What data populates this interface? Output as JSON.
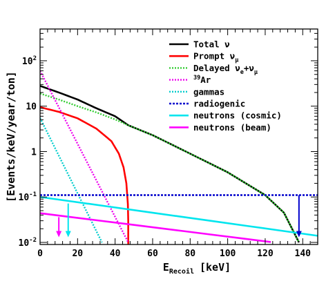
{
  "chart_data": {
    "type": "line",
    "xlabel": "E",
    "xlabel_sub": "Recoil",
    "xlabel_unit": "[keV]",
    "ylabel": "[Events/keV/year/ton]",
    "xlim": [
      0,
      148
    ],
    "ylim": [
      0.009,
      500
    ],
    "yscale": "log",
    "x_ticks": [
      0,
      20,
      40,
      60,
      80,
      100,
      120,
      140
    ],
    "x_tick_labels": [
      "0",
      "20",
      "40",
      "60",
      "80",
      "100",
      "120",
      "140"
    ],
    "y_ticks": [
      0.01,
      0.1,
      1,
      10,
      100
    ],
    "y_tick_labels": [
      {
        "base": "10",
        "exp": "-2"
      },
      {
        "base": "10",
        "exp": "-1"
      },
      {
        "base": "1",
        "exp": ""
      },
      {
        "base": "10",
        "exp": ""
      },
      {
        "base": "10",
        "exp": "2"
      }
    ],
    "legend_position": "top-right",
    "series": [
      {
        "name": "Total ν",
        "legend": {
          "main": "Total ν"
        },
        "color": "#000000",
        "style": "solid",
        "x": [
          0,
          10,
          20,
          30,
          40,
          47,
          60,
          80,
          100,
          120,
          130,
          138
        ],
        "y": [
          28,
          20,
          14,
          9,
          6,
          3.8,
          2.3,
          0.9,
          0.35,
          0.11,
          0.045,
          0.01
        ]
      },
      {
        "name": "Prompt ν_μ",
        "legend": {
          "main": "Prompt ν",
          "sub": "μ"
        },
        "color": "#ff0000",
        "style": "solid",
        "x": [
          0,
          10,
          20,
          30,
          38,
          42,
          44.5,
          46,
          46.8,
          47,
          47
        ],
        "y": [
          9.5,
          7.5,
          5.4,
          3.2,
          1.7,
          0.9,
          0.45,
          0.2,
          0.07,
          0.03,
          0.009
        ]
      },
      {
        "name": "Delayed ν_e+ν̄_μ",
        "legend": {
          "main": "Delayed ν",
          "sub": "e",
          "plus": "+ν",
          "sub2": "μ"
        },
        "color": "#33cc33",
        "style": "dotted",
        "x": [
          0,
          10,
          20,
          30,
          40,
          47,
          60,
          80,
          100,
          120,
          130,
          138
        ],
        "y": [
          19,
          14,
          10,
          7.3,
          5.1,
          3.8,
          2.3,
          0.9,
          0.35,
          0.11,
          0.045,
          0.01
        ]
      },
      {
        "name": "39Ar",
        "legend": {
          "sup": "39",
          "main": "Ar"
        },
        "color": "#ee00ee",
        "style": "dotted",
        "x": [
          0,
          47
        ],
        "y": [
          60,
          0.01
        ]
      },
      {
        "name": "gammas",
        "legend": {
          "main": "gammas"
        },
        "color": "#00cccc",
        "style": "dotted",
        "x": [
          0,
          33
        ],
        "y": [
          5.5,
          0.01
        ]
      },
      {
        "name": "radiogenic",
        "legend": {
          "main": "radiogenic"
        },
        "color": "#0000cc",
        "style": "dashed",
        "x": [
          0,
          148
        ],
        "y": [
          0.11,
          0.11
        ]
      },
      {
        "name": "neutrons (cosmic)",
        "legend": {
          "main": "neutrons (cosmic)"
        },
        "color": "#00e5ee",
        "style": "solid",
        "x": [
          0,
          148
        ],
        "y": [
          0.1,
          0.014
        ]
      },
      {
        "name": "neutrons (beam)",
        "legend": {
          "main": "neutrons (beam)"
        },
        "color": "#ff00ff",
        "style": "solid",
        "x": [
          0,
          123
        ],
        "y": [
          0.044,
          0.0102
        ]
      }
    ],
    "annotations": [
      {
        "type": "down-arrow",
        "x": 138,
        "y_from": 0.11,
        "y_to": 0.013,
        "color": "#0000cc"
      },
      {
        "type": "down-arrow",
        "x": 15,
        "y_from": 0.072,
        "y_to": 0.013,
        "color": "#00e5ee"
      },
      {
        "type": "down-arrow",
        "x": 10,
        "y_from": 0.036,
        "y_to": 0.013,
        "color": "#ff00ff"
      }
    ]
  }
}
